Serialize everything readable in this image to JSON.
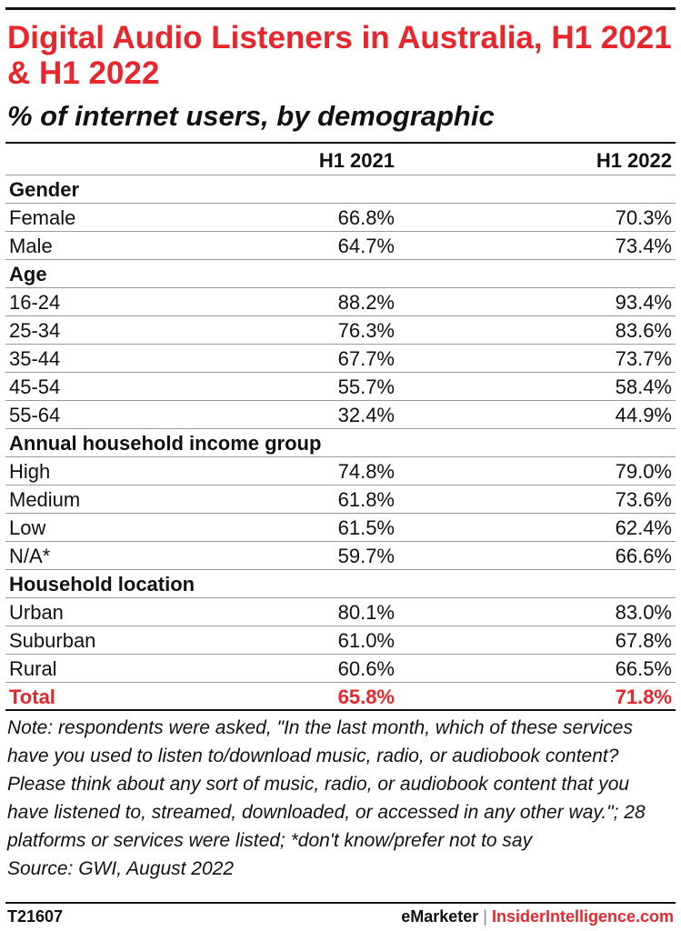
{
  "title": "Digital Audio Listeners in Australia, H1 2021 & H1 2022",
  "subtitle": "% of internet users, by demographic",
  "colors": {
    "accent": "#e8262c",
    "text": "#111111",
    "rule": "#9a9a9a"
  },
  "chart_data": {
    "type": "table",
    "columns": [
      "H1 2021",
      "H1 2022"
    ],
    "groups": [
      {
        "name": "Gender",
        "rows": [
          {
            "label": "Female",
            "values": [
              "66.8%",
              "70.3%"
            ]
          },
          {
            "label": "Male",
            "values": [
              "64.7%",
              "73.4%"
            ]
          }
        ]
      },
      {
        "name": "Age",
        "rows": [
          {
            "label": "16-24",
            "values": [
              "88.2%",
              "93.4%"
            ]
          },
          {
            "label": "25-34",
            "values": [
              "76.3%",
              "83.6%"
            ]
          },
          {
            "label": "35-44",
            "values": [
              "67.7%",
              "73.7%"
            ]
          },
          {
            "label": "45-54",
            "values": [
              "55.7%",
              "58.4%"
            ]
          },
          {
            "label": "55-64",
            "values": [
              "32.4%",
              "44.9%"
            ]
          }
        ]
      },
      {
        "name": "Annual household income group",
        "rows": [
          {
            "label": "High",
            "values": [
              "74.8%",
              "79.0%"
            ]
          },
          {
            "label": "Medium",
            "values": [
              "61.8%",
              "73.6%"
            ]
          },
          {
            "label": "Low",
            "values": [
              "61.5%",
              "62.4%"
            ]
          },
          {
            "label": "N/A*",
            "values": [
              "59.7%",
              "66.6%"
            ]
          }
        ]
      },
      {
        "name": "Household location",
        "rows": [
          {
            "label": "Urban",
            "values": [
              "80.1%",
              "83.0%"
            ]
          },
          {
            "label": "Suburban",
            "values": [
              "61.0%",
              "67.8%"
            ]
          },
          {
            "label": "Rural",
            "values": [
              "60.6%",
              "66.5%"
            ]
          }
        ]
      }
    ],
    "total": {
      "label": "Total",
      "values": [
        "65.8%",
        "71.8%"
      ]
    }
  },
  "note": "Note: respondents were asked, \"In the last month, which of these services have you used to listen to/download music, radio, or audiobook content? Please think about any sort of music, radio, or audiobook content that you have listened to, streamed, downloaded, or accessed in any other way.\"; 28 platforms or services were listed; *don't know/prefer not to say",
  "source": "Source: GWI, August 2022",
  "footer": {
    "chart_id": "T21607",
    "brand_left": "eMarketer",
    "separator": "|",
    "brand_right": "InsiderIntelligence.com"
  }
}
